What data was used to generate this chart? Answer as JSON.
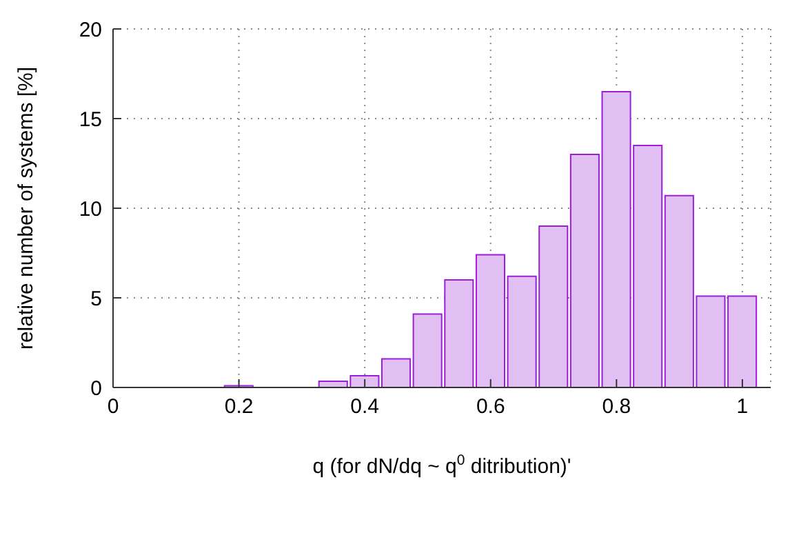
{
  "chart_data": {
    "type": "histogram",
    "xlabel": "q  (for dN/dq ~ q$^{0}$ ditribution)'",
    "ylabel": "relative number of systems [%]",
    "bins": [
      0.175,
      0.225,
      0.275,
      0.325,
      0.375,
      0.425,
      0.475,
      0.525,
      0.575,
      0.625,
      0.675,
      0.725,
      0.775,
      0.825,
      0.875,
      0.925,
      0.975,
      1.025
    ],
    "values": [
      0.1,
      0,
      0,
      0.35,
      0.65,
      1.6,
      4.1,
      6.0,
      7.4,
      6.2,
      9.0,
      13.0,
      16.5,
      13.5,
      10.7,
      5.1,
      5.1
    ],
    "color": "#e2bff3",
    "xlim": [
      0,
      1.045
    ],
    "xticks": [
      0,
      0.2,
      0.4,
      0.6,
      0.8,
      1
    ],
    "ylim": [
      0,
      20
    ],
    "yticks": [
      0,
      5,
      10,
      15,
      20
    ],
    "grid": true
  }
}
